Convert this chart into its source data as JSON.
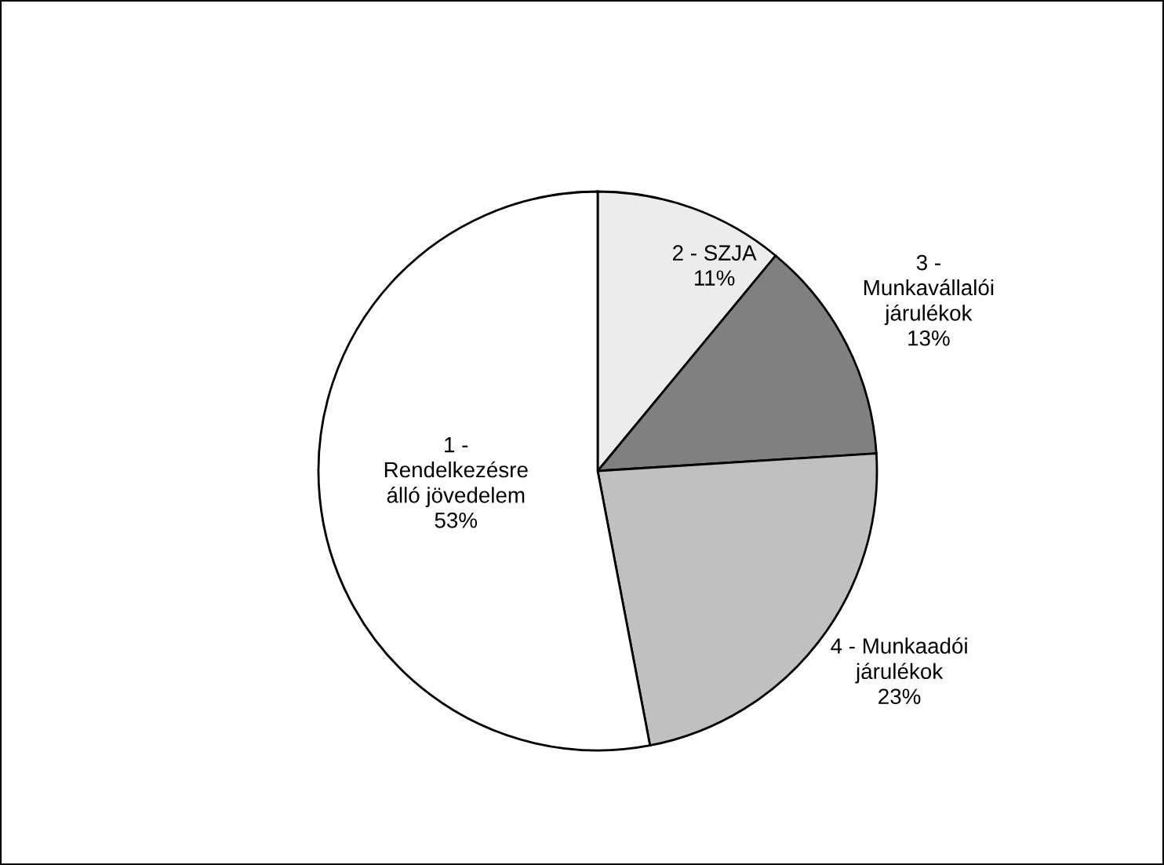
{
  "chart_data": {
    "type": "pie",
    "categories": [
      "2 - SZJA",
      "3 -\nMunkavállalói\njárulékok",
      "4 - Munkaadói\njárulékok",
      "1 -\nRendelkezésre\nálló jövedelem"
    ],
    "values": [
      11,
      13,
      23,
      53
    ],
    "value_labels": [
      "11%",
      "13%",
      "23%",
      "53%"
    ],
    "colors": [
      "#ececec",
      "#808080",
      "#c0c0c0",
      "#ffffff"
    ],
    "legend": false
  }
}
